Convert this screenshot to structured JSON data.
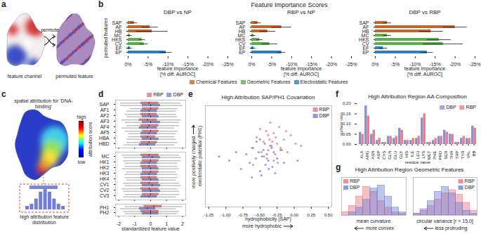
{
  "figure_labels": [
    "a",
    "b",
    "c",
    "d",
    "e",
    "f",
    "g"
  ],
  "diagram_a": {
    "left_label": "feature channel",
    "arrow_label": "permute",
    "right_label": "permuted feature"
  },
  "diagram_c": {
    "title": "spatial attribution for 'DNA-binding'",
    "colorbar_label": "attribution score",
    "colorbar_high": "high",
    "colorbar_low": "low",
    "inset_label": "high attribution feature distribution"
  },
  "panel_b": {
    "title": "Feature Importance Scores",
    "groups": [
      {
        "name": "Chemical Features",
        "color": "#c0662b"
      },
      {
        "name": "Geometric Features",
        "color": "#5aac4c"
      },
      {
        "name": "Electrostatic Features",
        "color": "#2e7dbf"
      }
    ]
  },
  "chart_data": [
    {
      "type": "bar",
      "orientation": "horizontal",
      "title": "DBP vs NP",
      "xlabel": "feature importance\n[% diff. AUROC]",
      "ylabel": "permuted features",
      "categories": [
        "SAP",
        "AF",
        "HB",
        "MC",
        "HKS",
        "CV",
        "EF",
        "EP"
      ],
      "values": [
        -1.5,
        -5.5,
        -6,
        -0.5,
        -3.5,
        -4,
        -0.5,
        -9.5
      ],
      "errors": [
        0.8,
        2,
        4,
        0.5,
        0.8,
        1,
        0.5,
        1.5
      ],
      "colors": [
        "#c0662b",
        "#c0662b",
        "#c0662b",
        "#5aac4c",
        "#5aac4c",
        "#5aac4c",
        "#2e7dbf",
        "#2e7dbf"
      ],
      "xlim": [
        0,
        -25
      ],
      "xticks": [
        {
          "value": 0,
          "label": "0%"
        },
        {
          "value": -5,
          "label": "-5%"
        },
        {
          "value": -10,
          "label": "-10%"
        },
        {
          "value": -15,
          "label": "-15%"
        },
        {
          "value": -20,
          "label": "-20%"
        },
        {
          "value": -25,
          "label": "-25%"
        }
      ]
    },
    {
      "type": "bar",
      "orientation": "horizontal",
      "title": "RBP vs NP",
      "xlabel": "feature importance\n[% diff. AUROC]",
      "categories": [
        "SAP",
        "AF",
        "HB",
        "MC",
        "HKS",
        "CV",
        "EF",
        "EP"
      ],
      "values": [
        -1.5,
        -7.5,
        -4,
        -0.5,
        -2,
        -4.5,
        -0.5,
        -7.5
      ],
      "errors": [
        0.8,
        2.5,
        2,
        0.5,
        0.8,
        2,
        0.5,
        1
      ],
      "colors": [
        "#c0662b",
        "#c0662b",
        "#c0662b",
        "#5aac4c",
        "#5aac4c",
        "#5aac4c",
        "#2e7dbf",
        "#2e7dbf"
      ],
      "xlim": [
        0,
        -25
      ],
      "xticks": [
        {
          "value": 0,
          "label": "0%"
        },
        {
          "value": -5,
          "label": "-5%"
        },
        {
          "value": -10,
          "label": "-10%"
        },
        {
          "value": -15,
          "label": "-15%"
        },
        {
          "value": -20,
          "label": "-20%"
        },
        {
          "value": -25,
          "label": "-25%"
        }
      ]
    },
    {
      "type": "bar",
      "orientation": "horizontal",
      "title": "DBP vs RBP",
      "xlabel": "feature importance\n[% diff. AUROC]",
      "categories": [
        "SAP",
        "AF",
        "HB",
        "MC",
        "HKS",
        "CV",
        "EF",
        "EP"
      ],
      "values": [
        -3,
        -20,
        -14,
        -3,
        -16,
        -17,
        -2,
        -13
      ],
      "errors": [
        1,
        3,
        3,
        1,
        3,
        5,
        1,
        1.5
      ],
      "colors": [
        "#c0662b",
        "#c0662b",
        "#c0662b",
        "#5aac4c",
        "#5aac4c",
        "#5aac4c",
        "#2e7dbf",
        "#2e7dbf"
      ],
      "xlim": [
        0,
        -25
      ],
      "xticks": [
        {
          "value": 0,
          "label": "0%"
        },
        {
          "value": -5,
          "label": "-5%"
        },
        {
          "value": -10,
          "label": "-10%"
        },
        {
          "value": -15,
          "label": "-15%"
        },
        {
          "value": -20,
          "label": "-20%"
        },
        {
          "value": -25,
          "label": "-25%"
        }
      ]
    },
    {
      "type": "box",
      "orientation": "horizontal",
      "legend": "top-right",
      "tick_labels": "y",
      "categories": [
        "SAP",
        "AF1",
        "AF2",
        "AF3",
        "AF4",
        "AF5",
        "HBA",
        "HBD"
      ],
      "series": [
        {
          "name": "RBP",
          "color": "#e8737a",
          "whisker_low": [
            -1.9,
            -1.3,
            -1.6,
            -1.8,
            -1.5,
            -1.6,
            -1.4,
            -1.5
          ],
          "q1": [
            -0.6,
            -0.5,
            -0.6,
            -0.7,
            -0.6,
            -0.5,
            -0.6,
            -0.6
          ],
          "median": [
            -0.1,
            0,
            -0.1,
            -0.2,
            -0.1,
            0,
            -0.2,
            -0.1
          ],
          "q3": [
            0.5,
            0.5,
            0.4,
            0.4,
            0.5,
            0.5,
            0.3,
            0.4
          ],
          "whisker_high": [
            1.9,
            1.7,
            1.6,
            1.9,
            1.8,
            1.7,
            1.5,
            1.7
          ]
        },
        {
          "name": "DBP",
          "color": "#7b86d6",
          "whisker_low": [
            -1.9,
            -1.5,
            -1.5,
            -1.6,
            -1.8,
            -1.4,
            -1.5,
            -1.7
          ],
          "q1": [
            -0.5,
            -0.6,
            -0.5,
            -0.5,
            -0.7,
            -0.6,
            -0.5,
            -0.7
          ],
          "median": [
            0,
            -0.1,
            0,
            0,
            -0.2,
            -0.1,
            0,
            -0.2
          ],
          "q3": [
            0.6,
            0.4,
            0.5,
            0.6,
            0.4,
            0.4,
            0.5,
            0.3
          ],
          "whisker_high": [
            2,
            1.6,
            1.7,
            1.8,
            1.5,
            1.6,
            1.6,
            1.5
          ]
        }
      ],
      "xlim": [
        -2.2,
        2.2
      ],
      "xticks": [
        -2,
        -1,
        0,
        1,
        2
      ]
    },
    {
      "type": "box",
      "orientation": "horizontal",
      "tick_labels": "y",
      "categories": [
        "MC",
        "HK1",
        "HK2",
        "HK3",
        "HK4",
        "CV1",
        "CV2",
        "CV3"
      ],
      "series": [
        {
          "name": "RBP",
          "color": "#e8737a",
          "whisker_low": [
            -1.8,
            -1.7,
            -1.6,
            -1.5,
            -1.6,
            -1.7,
            -1.8,
            -1.6
          ],
          "q1": [
            -0.6,
            -0.5,
            -0.6,
            -0.5,
            -0.6,
            -0.6,
            -0.6,
            -0.5
          ],
          "median": [
            -0.1,
            0,
            -0.1,
            0,
            -0.1,
            -0.1,
            -0.1,
            0
          ],
          "q3": [
            0.5,
            0.5,
            0.4,
            0.5,
            0.4,
            0.5,
            0.5,
            0.5
          ],
          "whisker_high": [
            1.8,
            1.9,
            1.7,
            1.6,
            1.7,
            1.8,
            1.7,
            1.8
          ]
        },
        {
          "name": "DBP",
          "color": "#7b86d6",
          "whisker_low": [
            -1.7,
            -1.6,
            -1.8,
            -1.6,
            -1.5,
            -1.6,
            -1.7,
            -1.7
          ],
          "q1": [
            -0.5,
            -0.6,
            -0.5,
            -0.6,
            -0.5,
            -0.5,
            -0.5,
            -0.6
          ],
          "median": [
            0.1,
            -0.1,
            0,
            -0.1,
            0,
            0.1,
            0,
            -0.1
          ],
          "q3": [
            0.6,
            0.4,
            0.5,
            0.4,
            0.5,
            0.6,
            0.6,
            0.4
          ],
          "whisker_high": [
            1.9,
            1.7,
            1.8,
            1.7,
            1.6,
            1.9,
            1.8,
            1.6
          ]
        }
      ],
      "xlim": [
        -2.2,
        2.2
      ],
      "xticks": [
        -2,
        -1,
        0,
        1,
        2
      ]
    },
    {
      "type": "box",
      "orientation": "horizontal",
      "xlabel": "standardized feature value",
      "categories": [
        "PH1",
        "PH2"
      ],
      "series": [
        {
          "name": "RBP",
          "color": "#e8737a",
          "whisker_low": [
            -1.6,
            -1.7
          ],
          "q1": [
            -0.4,
            -0.6
          ],
          "median": [
            0.2,
            0
          ],
          "q3": [
            0.7,
            0.5
          ],
          "whisker_high": [
            2,
            1.8
          ]
        },
        {
          "name": "DBP",
          "color": "#7b86d6",
          "whisker_low": [
            -1.9,
            -1.6
          ],
          "q1": [
            -0.7,
            -0.5
          ],
          "median": [
            -0.2,
            0
          ],
          "q3": [
            0.3,
            0.5
          ],
          "whisker_high": [
            1.6,
            1.7
          ]
        }
      ],
      "xlim": [
        -2.2,
        2.2
      ],
      "xticks": [
        -2,
        -1,
        0,
        1,
        2
      ]
    },
    {
      "type": "scatter",
      "title": "High Attribution SAP/PH1 Covariation",
      "xlabel": "hydrophobicity (SAP)",
      "ylabel": "electrostatic potential (PH1)",
      "x_annotation": "more hydrophobic",
      "y_annotation": "more positively charged",
      "legend": "top-right",
      "tick_labels": "x",
      "series": [
        {
          "name": "RBP",
          "color": "#e8737a",
          "x": [
            -0.62,
            -0.55,
            -0.48,
            -0.45,
            -0.41,
            -0.38,
            -0.36,
            -0.33,
            -0.3,
            -0.28,
            -0.25,
            -0.22,
            -0.2,
            -0.15,
            -0.1,
            -0.05,
            0.02,
            -0.4,
            -0.35,
            -0.3,
            -0.27,
            -0.5,
            -0.44,
            -0.32,
            -0.18,
            -0.12,
            -0.6,
            -0.38,
            -0.24,
            0.1
          ],
          "y": [
            0.2,
            0.45,
            0.1,
            0.35,
            0.6,
            0.15,
            0.4,
            0.25,
            0.55,
            0.05,
            0.3,
            0.7,
            0.2,
            0.4,
            0.1,
            0.5,
            0.3,
            -0.05,
            0.8,
            -0.1,
            0.45,
            0.65,
            0,
            0.35,
            0.15,
            0.6,
            -0.2,
            0.5,
            -0.15,
            0.25
          ]
        },
        {
          "name": "DBP",
          "color": "#6f7fd8",
          "x": [
            -0.95,
            -0.85,
            -0.78,
            -0.7,
            -0.65,
            -0.6,
            -0.56,
            -0.52,
            -0.5,
            -0.47,
            -0.45,
            -0.42,
            -0.4,
            -0.38,
            -0.35,
            -0.32,
            -0.3,
            -0.25,
            -0.2,
            -0.15,
            -0.55,
            -0.48,
            -0.43,
            -0.37,
            -0.62,
            -0.5,
            -0.33,
            -0.28,
            -1.1,
            0.05
          ],
          "y": [
            -0.1,
            0.1,
            -0.3,
            0.05,
            -0.15,
            0.2,
            -0.05,
            0.1,
            -0.35,
            0,
            0.15,
            -0.2,
            0.05,
            -0.1,
            0.25,
            -0.25,
            0.1,
            -0.05,
            0.15,
            -0.15,
            0.35,
            -0.45,
            0.3,
            -0.3,
            -0.5,
            0.4,
            0.2,
            -0.4,
            0,
            -0.1
          ]
        }
      ],
      "xlim": [
        -1.3,
        0.55
      ],
      "xticks": [
        -1.25,
        {
          "value": -1,
          "label": "-1.00"
        },
        -0.75,
        {
          "value": -0.5,
          "label": "-0.50"
        },
        -0.25,
        {
          "value": 0,
          "label": "0.00"
        },
        0.25,
        {
          "value": 0.5,
          "label": "0.50"
        }
      ],
      "ylim": [
        -1.2,
        1.2
      ],
      "yticks": []
    },
    {
      "type": "bar",
      "title": "High Attribution Region AA Composition",
      "xlabel": "residue name",
      "ylabel": "surface ratio",
      "legend": "top-right",
      "categories": [
        "ALA",
        "ARG",
        "ASN",
        "ASP",
        "CYS",
        "GLN",
        "GLU",
        "GLY",
        "HIS",
        "ILE",
        "LEU",
        "LYS",
        "MET",
        "PHE",
        "PRO",
        "SER",
        "THR",
        "TRP",
        "TYR",
        "VAL",
        "BB"
      ],
      "series": [
        {
          "name": "DBP",
          "color": "#8a90e0",
          "values": [
            0.06,
            0.19,
            0.05,
            0.02,
            0.01,
            0.04,
            0.03,
            0.08,
            0.02,
            0.02,
            0.03,
            0.13,
            0.01,
            0.02,
            0.04,
            0.07,
            0.05,
            0.01,
            0.03,
            0.03,
            0.09
          ]
        },
        {
          "name": "RBP",
          "color": "#e8828a",
          "values": [
            0.05,
            0.14,
            0.07,
            0.03,
            0.01,
            0.04,
            0.04,
            0.07,
            0.02,
            0.03,
            0.04,
            0.15,
            0.01,
            0.03,
            0.04,
            0.06,
            0.05,
            0.01,
            0.04,
            0.03,
            0.08
          ]
        }
      ],
      "ylim": [
        0,
        0.2
      ],
      "yticks": [
        {
          "value": 0,
          "label": "0.00"
        },
        0.05,
        {
          "value": 0.1,
          "label": "0.10"
        },
        0.15,
        {
          "value": 0.2,
          "label": "0.20"
        }
      ]
    },
    {
      "type": "histogram",
      "title": "High Attribution Region Geometric Features",
      "xlabel": "mean curvature",
      "annotation": "more convex",
      "legend": "top-left",
      "tick_labels": false,
      "bins": [
        -0.15,
        -0.1,
        -0.05,
        0,
        0.05,
        0.1,
        0.15,
        0.2,
        0.25,
        0.3
      ],
      "series": [
        {
          "name": "RBP",
          "color": "#e8737a",
          "values": [
            2,
            6,
            12,
            18,
            15,
            9,
            5,
            2,
            1
          ]
        },
        {
          "name": "DBP",
          "color": "#6f7fd8",
          "values": [
            0,
            2,
            5,
            10,
            17,
            19,
            12,
            5,
            2
          ]
        }
      ],
      "xlim": [
        -0.15,
        0.3
      ],
      "xticks": [],
      "ylim": [
        0,
        24
      ],
      "yticks": []
    },
    {
      "type": "histogram",
      "xlabel": "circular variance [r = 15.0]",
      "annotation": "less protruding",
      "legend": "top-right",
      "tick_labels": false,
      "bins": [
        0.3,
        0.35,
        0.4,
        0.45,
        0.5,
        0.55,
        0.6,
        0.65,
        0.7,
        0.75
      ],
      "series": [
        {
          "name": "RBP",
          "color": "#e8737a",
          "values": [
            1,
            3,
            6,
            10,
            14,
            16,
            13,
            8,
            3
          ]
        },
        {
          "name": "DBP",
          "color": "#6f7fd8",
          "values": [
            1,
            4,
            9,
            15,
            18,
            14,
            8,
            3,
            1
          ]
        }
      ],
      "xlim": [
        0.3,
        0.75
      ],
      "xticks": [],
      "ylim": [
        0,
        24
      ],
      "yticks": []
    }
  ]
}
